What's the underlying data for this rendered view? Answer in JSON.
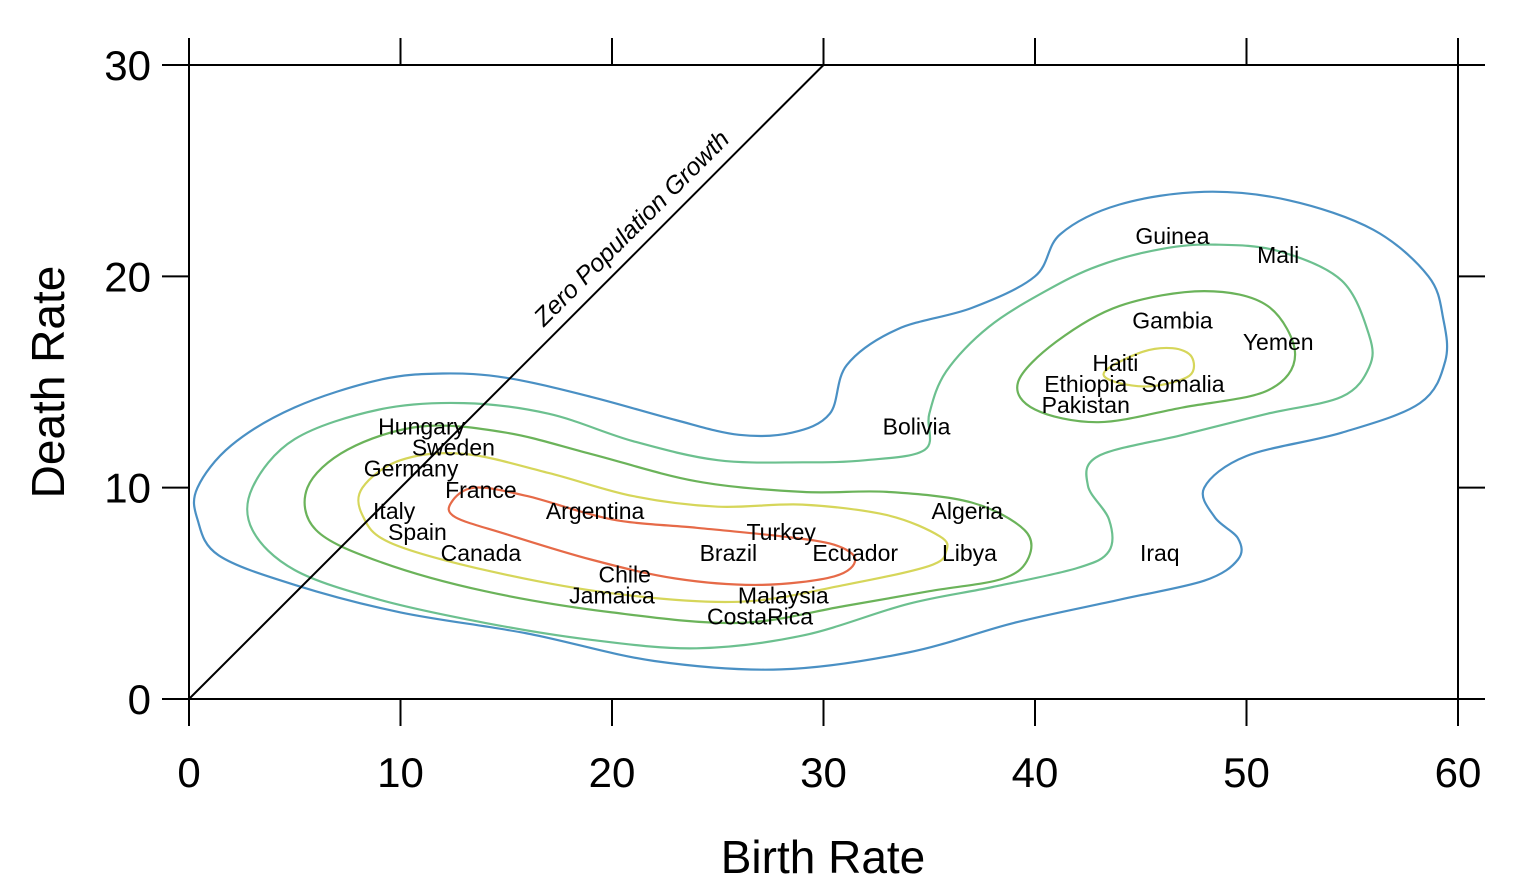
{
  "chart_data": {
    "type": "scatter",
    "title": "",
    "xlabel": "Birth Rate",
    "ylabel": "Death Rate",
    "xlim": [
      0,
      60
    ],
    "ylim": [
      0,
      30
    ],
    "xticks": [
      0,
      10,
      20,
      30,
      40,
      50,
      60
    ],
    "yticks": [
      0,
      10,
      20,
      30
    ],
    "grid": false,
    "reference_line": {
      "label": "Zero Population Growth",
      "from": [
        0,
        0
      ],
      "to": [
        30,
        30
      ]
    },
    "points": [
      {
        "label": "Guinea",
        "x": 46.5,
        "y": 21.9
      },
      {
        "label": "Mali",
        "x": 51.5,
        "y": 21.0
      },
      {
        "label": "Gambia",
        "x": 46.5,
        "y": 17.9
      },
      {
        "label": "Yemen",
        "x": 51.5,
        "y": 16.9
      },
      {
        "label": "Haiti",
        "x": 43.8,
        "y": 15.9
      },
      {
        "label": "Ethiopia",
        "x": 42.4,
        "y": 14.9
      },
      {
        "label": "Somalia",
        "x": 47.0,
        "y": 14.9
      },
      {
        "label": "Pakistan",
        "x": 42.4,
        "y": 13.9
      },
      {
        "label": "Bolivia",
        "x": 34.4,
        "y": 12.9
      },
      {
        "label": "Hungary",
        "x": 11.0,
        "y": 12.9
      },
      {
        "label": "Sweden",
        "x": 12.5,
        "y": 11.9
      },
      {
        "label": "Germany",
        "x": 10.5,
        "y": 10.9
      },
      {
        "label": "France",
        "x": 13.8,
        "y": 9.9
      },
      {
        "label": "Algeria",
        "x": 36.8,
        "y": 8.9
      },
      {
        "label": "Italy",
        "x": 9.7,
        "y": 8.9
      },
      {
        "label": "Argentina",
        "x": 19.2,
        "y": 8.9
      },
      {
        "label": "Turkey",
        "x": 28.0,
        "y": 7.9
      },
      {
        "label": "Spain",
        "x": 10.8,
        "y": 7.9
      },
      {
        "label": "Canada",
        "x": 13.8,
        "y": 6.9
      },
      {
        "label": "Brazil",
        "x": 25.5,
        "y": 6.9
      },
      {
        "label": "Ecuador",
        "x": 31.5,
        "y": 6.9
      },
      {
        "label": "Libya",
        "x": 36.9,
        "y": 6.9
      },
      {
        "label": "Iraq",
        "x": 45.9,
        "y": 6.9
      },
      {
        "label": "Chile",
        "x": 20.6,
        "y": 5.9
      },
      {
        "label": "Jamaica",
        "x": 20.0,
        "y": 4.9
      },
      {
        "label": "Malaysia",
        "x": 28.1,
        "y": 4.9
      },
      {
        "label": "CostaRica",
        "x": 27.0,
        "y": 3.9
      }
    ],
    "contours": [
      {
        "color": "#4a90c4",
        "points": [
          [
            0.4,
            10
          ],
          [
            2,
            12
          ],
          [
            5,
            13.8
          ],
          [
            9,
            15.1
          ],
          [
            12,
            15.4
          ],
          [
            15,
            15.2
          ],
          [
            19,
            14.3
          ],
          [
            23,
            13.2
          ],
          [
            26,
            12.5
          ],
          [
            28.5,
            12.6
          ],
          [
            30.3,
            13.5
          ],
          [
            31.1,
            15.8
          ],
          [
            33.5,
            17.5
          ],
          [
            37,
            18.5
          ],
          [
            40,
            20
          ],
          [
            41.2,
            22
          ],
          [
            44,
            23.4
          ],
          [
            48,
            24
          ],
          [
            52,
            23.6
          ],
          [
            56,
            22.2
          ],
          [
            58.6,
            20
          ],
          [
            59.3,
            18
          ],
          [
            59.4,
            16
          ],
          [
            58.2,
            14
          ],
          [
            54.5,
            12.6
          ],
          [
            50,
            11.5
          ],
          [
            48,
            10
          ],
          [
            48.5,
            8.6
          ],
          [
            49.6,
            7.6
          ],
          [
            49.6,
            6.6
          ],
          [
            48,
            5.6
          ],
          [
            44,
            4.7
          ],
          [
            39,
            3.6
          ],
          [
            34,
            2.2
          ],
          [
            28,
            1.4
          ],
          [
            22,
            1.8
          ],
          [
            16,
            3.1
          ],
          [
            10,
            4.1
          ],
          [
            5,
            5.4
          ],
          [
            1.4,
            6.8
          ],
          [
            0.4,
            8.5
          ],
          [
            0.4,
            10
          ]
        ]
      },
      {
        "color": "#6cc08f",
        "points": [
          [
            3,
            10
          ],
          [
            5,
            12.3
          ],
          [
            9,
            13.7
          ],
          [
            13,
            14
          ],
          [
            17,
            13.5
          ],
          [
            21,
            12.2
          ],
          [
            25,
            11.3
          ],
          [
            29,
            11.2
          ],
          [
            32,
            11.3
          ],
          [
            34.8,
            11.8
          ],
          [
            35,
            13.5
          ],
          [
            35.8,
            15.5
          ],
          [
            37.8,
            17.6
          ],
          [
            40.5,
            19.3
          ],
          [
            43,
            20.5
          ],
          [
            46,
            21.3
          ],
          [
            48.5,
            21.5
          ],
          [
            51.5,
            21.2
          ],
          [
            54.5,
            19.8
          ],
          [
            55.8,
            17.2
          ],
          [
            55.8,
            15.7
          ],
          [
            54.5,
            14.3
          ],
          [
            51,
            13.5
          ],
          [
            47,
            12.5
          ],
          [
            43,
            11.5
          ],
          [
            42.5,
            10.1
          ],
          [
            43.5,
            8.5
          ],
          [
            43.5,
            7
          ],
          [
            42,
            6.2
          ],
          [
            38,
            5.3
          ],
          [
            34,
            4.5
          ],
          [
            29,
            3
          ],
          [
            24,
            2.4
          ],
          [
            19,
            2.8
          ],
          [
            14,
            3.6
          ],
          [
            9,
            4.7
          ],
          [
            5,
            6.1
          ],
          [
            3,
            8
          ],
          [
            3,
            10
          ]
        ]
      },
      {
        "color": "#6bb35a",
        "points": [
          [
            5.6,
            10
          ],
          [
            7.5,
            11.8
          ],
          [
            11,
            12.9
          ],
          [
            15,
            12.6
          ],
          [
            19,
            11.6
          ],
          [
            24,
            10.3
          ],
          [
            29,
            9.8
          ],
          [
            33,
            9.8
          ],
          [
            37,
            9.3
          ],
          [
            39.5,
            8
          ],
          [
            39.7,
            6.7
          ],
          [
            38.5,
            5.7
          ],
          [
            35,
            5.1
          ],
          [
            31,
            4.4
          ],
          [
            26,
            3.6
          ],
          [
            20,
            4.1
          ],
          [
            14,
            5.1
          ],
          [
            9,
            6.5
          ],
          [
            6,
            8
          ],
          [
            5.6,
            10
          ]
        ]
      },
      {
        "color": "#6bb35a",
        "points": [
          [
            39.2,
            15
          ],
          [
            41,
            16.9
          ],
          [
            44,
            18.6
          ],
          [
            48,
            19.3
          ],
          [
            51,
            18.6
          ],
          [
            52.3,
            16.3
          ],
          [
            51,
            14.6
          ],
          [
            47,
            13.8
          ],
          [
            43,
            13.1
          ],
          [
            40,
            13.7
          ],
          [
            39.2,
            15
          ]
        ]
      },
      {
        "color": "#d6d65a",
        "points": [
          [
            8.2,
            10
          ],
          [
            10,
            11.3
          ],
          [
            13,
            11.6
          ],
          [
            17,
            10.7
          ],
          [
            21,
            9.6
          ],
          [
            25,
            9.1
          ],
          [
            29,
            9.2
          ],
          [
            33,
            8.7
          ],
          [
            35.5,
            7.7
          ],
          [
            35.8,
            7
          ],
          [
            35,
            6.3
          ],
          [
            31,
            5.4
          ],
          [
            26,
            4.6
          ],
          [
            20,
            5
          ],
          [
            14,
            6.1
          ],
          [
            9.5,
            7.4
          ],
          [
            8.2,
            8.7
          ],
          [
            8.2,
            10
          ]
        ]
      },
      {
        "color": "#d6d65a",
        "points": [
          [
            43.3,
            15.5
          ],
          [
            45,
            16.4
          ],
          [
            46.5,
            16.6
          ],
          [
            47.4,
            16.2
          ],
          [
            47.3,
            15.3
          ],
          [
            45.5,
            14.8
          ],
          [
            43.8,
            15
          ],
          [
            43.3,
            15.5
          ]
        ]
      },
      {
        "color": "#e66a48",
        "points": [
          [
            12.4,
            9.3
          ],
          [
            13.5,
            10
          ],
          [
            16,
            9.6
          ],
          [
            20,
            8.5
          ],
          [
            24,
            8.1
          ],
          [
            28,
            7.7
          ],
          [
            30.5,
            7.3
          ],
          [
            31.5,
            6.6
          ],
          [
            30.5,
            5.8
          ],
          [
            27,
            5.4
          ],
          [
            23,
            5.7
          ],
          [
            19,
            6.6
          ],
          [
            15,
            7.8
          ],
          [
            12.6,
            8.6
          ],
          [
            12.4,
            9.3
          ]
        ]
      }
    ]
  }
}
